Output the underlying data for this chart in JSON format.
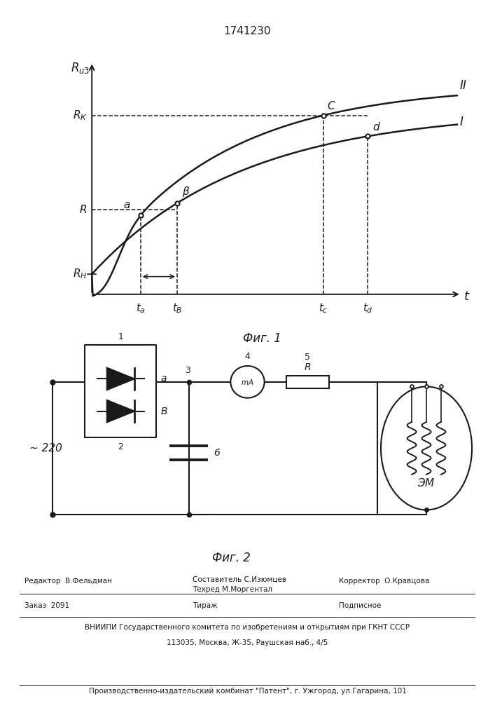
{
  "title": "1741230",
  "fig1_caption": "Фиг. 1",
  "fig2_caption": "Фиг. 2",
  "line_color": "#1a1a1a",
  "label_220": "~ 220",
  "footer_editor": "Редактор  В.Фельдман",
  "footer_composer1": "Составитель С.Изюмцев",
  "footer_techred": "Техред М.Моргентал",
  "footer_corrector": "Корректор  О.Кравцова",
  "footer_order": "Заказ  2091",
  "footer_tirazh": "Тираж",
  "footer_podp": "Подписное",
  "footer_vniip1": "ВНИИПИ Государственного комитета по изобретениям и открытиям при ГКНТ СССР",
  "footer_vniip2": "113035, Москва, Ж-35, Раушская наб., 4/5",
  "footer_prod": "Производственно-издательский комбинат \"Патент\", г. Ужгород, ул.Гагарина, 101"
}
